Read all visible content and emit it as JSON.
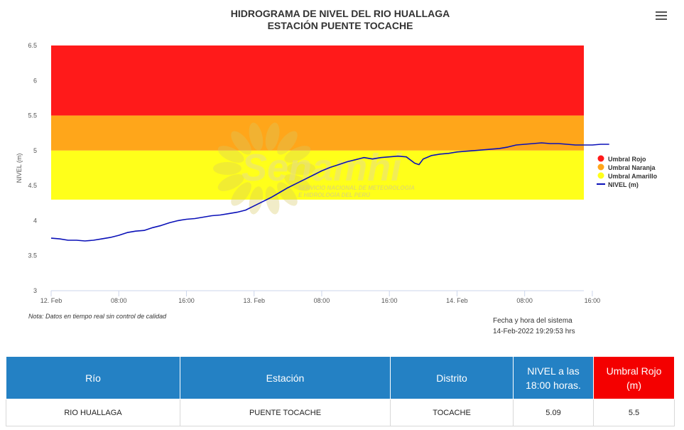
{
  "title_line1": "HIDROGRAMA DE NIVEL DEL RIO HUALLAGA",
  "title_line2": "ESTACIÓN PUENTE TOCACHE",
  "watermark": {
    "brand": "Senamhi",
    "line1": "SERVICIO NACIONAL DE METEOROLOGÍA",
    "line2": "E HIDROLOGÍA DEL PERÚ"
  },
  "note": "Nota: Datos en tiempo real sin control de calidad",
  "system_time_label": "Fecha y hora del sistema",
  "system_time_value": "14-Feb-2022 19:29:53 hrs",
  "icons": {
    "menu": "hamburger-menu-icon"
  },
  "colors": {
    "red": "#ff1a1a",
    "orange": "#ffa61a",
    "yellow": "#ffff1a",
    "line": "#0a10b8",
    "header_blue": "#2481c4",
    "header_red": "#f40000"
  },
  "chart_data": {
    "type": "line",
    "title": "HIDROGRAMA DE NIVEL DEL RIO HUALLAGA — ESTACIÓN PUENTE TOCACHE",
    "xlabel": "",
    "ylabel": "NIVEL (m)",
    "ylim": [
      3,
      6.5
    ],
    "yticks": [
      "3",
      "3.5",
      "4",
      "4.5",
      "5",
      "5.5",
      "6",
      "6.5"
    ],
    "xlim_hours": [
      0,
      63
    ],
    "xticks": [
      {
        "h": 0,
        "label": "12. Feb"
      },
      {
        "h": 8,
        "label": "08:00"
      },
      {
        "h": 16,
        "label": "16:00"
      },
      {
        "h": 24,
        "label": "13. Feb"
      },
      {
        "h": 32,
        "label": "08:00"
      },
      {
        "h": 40,
        "label": "16:00"
      },
      {
        "h": 48,
        "label": "14. Feb"
      },
      {
        "h": 56,
        "label": "08:00"
      },
      {
        "h": 64,
        "label": "16:00"
      }
    ],
    "bands": [
      {
        "name": "Umbral Rojo",
        "from": 5.5,
        "to": 6.5,
        "color": "#ff1a1a"
      },
      {
        "name": "Umbral Naranja",
        "from": 5.0,
        "to": 5.5,
        "color": "#ffa61a"
      },
      {
        "name": "Umbral Amarillo",
        "from": 4.3,
        "to": 5.0,
        "color": "#ffff1a"
      }
    ],
    "legend": [
      {
        "name": "Umbral Rojo",
        "color": "#ff1a1a",
        "kind": "dot"
      },
      {
        "name": "Umbral Naranja",
        "color": "#ffa61a",
        "kind": "dot"
      },
      {
        "name": "Umbral Amarillo",
        "color": "#ffff1a",
        "kind": "dot"
      },
      {
        "name": "NIVEL (m)",
        "color": "#0a10b8",
        "kind": "line"
      }
    ],
    "legend_position": "right",
    "series": [
      {
        "name": "NIVEL (m)",
        "x_hours": [
          0,
          1,
          2,
          3,
          4,
          5,
          6,
          7,
          8,
          9,
          10,
          11,
          12,
          13,
          14,
          15,
          16,
          17,
          18,
          19,
          20,
          21,
          22,
          23,
          24,
          25,
          26,
          27,
          28,
          29,
          30,
          31,
          32,
          33,
          34,
          35,
          36,
          37,
          38,
          39,
          40,
          41,
          42,
          43,
          43.5,
          44,
          45,
          46,
          47,
          48,
          49,
          50,
          51,
          52,
          53,
          54,
          55,
          56,
          57,
          58,
          59,
          60,
          61,
          62,
          63,
          64,
          65,
          66
        ],
        "values": [
          3.75,
          3.74,
          3.72,
          3.72,
          3.71,
          3.72,
          3.74,
          3.76,
          3.79,
          3.83,
          3.85,
          3.86,
          3.9,
          3.93,
          3.97,
          4.0,
          4.02,
          4.03,
          4.05,
          4.07,
          4.08,
          4.1,
          4.12,
          4.15,
          4.21,
          4.27,
          4.33,
          4.4,
          4.47,
          4.53,
          4.59,
          4.65,
          4.71,
          4.76,
          4.8,
          4.84,
          4.87,
          4.9,
          4.88,
          4.9,
          4.91,
          4.92,
          4.91,
          4.82,
          4.8,
          4.88,
          4.93,
          4.95,
          4.96,
          4.98,
          4.99,
          5.0,
          5.01,
          5.02,
          5.03,
          5.05,
          5.08,
          5.09,
          5.1,
          5.11,
          5.1,
          5.1,
          5.09,
          5.08,
          5.08,
          5.08,
          5.09,
          5.09
        ]
      }
    ]
  },
  "table": {
    "headers": [
      "Río",
      "Estación",
      "Distrito",
      "NIVEL a las 18:00 horas.",
      "Umbral Rojo (m)"
    ],
    "row": [
      "RIO HUALLAGA",
      "PUENTE TOCACHE",
      "TOCACHE",
      "5.09",
      "5.5"
    ]
  }
}
